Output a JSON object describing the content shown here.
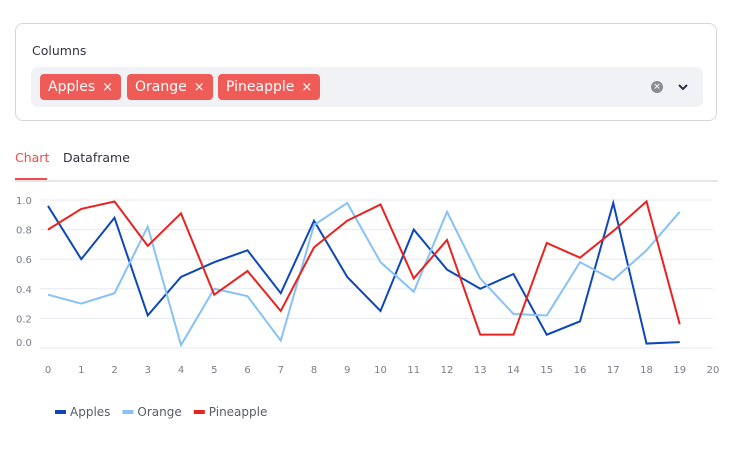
{
  "multiselect": {
    "label": "Columns",
    "selected": [
      "Apples",
      "Orange",
      "Pineapple"
    ],
    "remove_glyph": "×",
    "clear_icon": "clear-circle-icon",
    "dropdown_icon": "chevron-down-icon",
    "tag_color": "#ef5b57"
  },
  "tabs": [
    {
      "label": "Chart",
      "active": true
    },
    {
      "label": "Dataframe",
      "active": false
    }
  ],
  "accent_color": "#ef4b4b",
  "chart_data": {
    "type": "line",
    "x": [
      0,
      1,
      2,
      3,
      4,
      5,
      6,
      7,
      8,
      9,
      10,
      11,
      12,
      13,
      14,
      15,
      16,
      17,
      18,
      19
    ],
    "xlim": [
      0,
      20
    ],
    "ylim": [
      0,
      1.0
    ],
    "xticks": [
      0,
      1,
      2,
      3,
      4,
      5,
      6,
      7,
      8,
      9,
      10,
      11,
      12,
      13,
      14,
      15,
      16,
      17,
      18,
      19,
      20
    ],
    "yticks": [
      "0.0",
      "0.2",
      "0.4",
      "0.6",
      "0.8",
      "1.0"
    ],
    "grid": true,
    "legend_position": "bottom-left",
    "series": [
      {
        "name": "Apples",
        "color": "#0d47b8",
        "values": [
          0.96,
          0.6,
          0.88,
          0.22,
          0.48,
          0.58,
          0.66,
          0.37,
          0.86,
          0.48,
          0.25,
          0.8,
          0.53,
          0.4,
          0.5,
          0.09,
          0.18,
          0.98,
          0.03,
          0.04
        ]
      },
      {
        "name": "Orange",
        "color": "#87c1f7",
        "values": [
          0.36,
          0.3,
          0.37,
          0.82,
          0.02,
          0.4,
          0.35,
          0.05,
          0.83,
          0.98,
          0.58,
          0.38,
          0.92,
          0.47,
          0.23,
          0.22,
          0.58,
          0.46,
          0.66,
          0.92
        ]
      },
      {
        "name": "Pineapple",
        "color": "#e8221f",
        "values": [
          0.8,
          0.94,
          0.99,
          0.69,
          0.91,
          0.36,
          0.52,
          0.25,
          0.68,
          0.86,
          0.97,
          0.47,
          0.73,
          0.09,
          0.09,
          0.71,
          0.61,
          0.79,
          0.99,
          0.16
        ]
      }
    ]
  }
}
